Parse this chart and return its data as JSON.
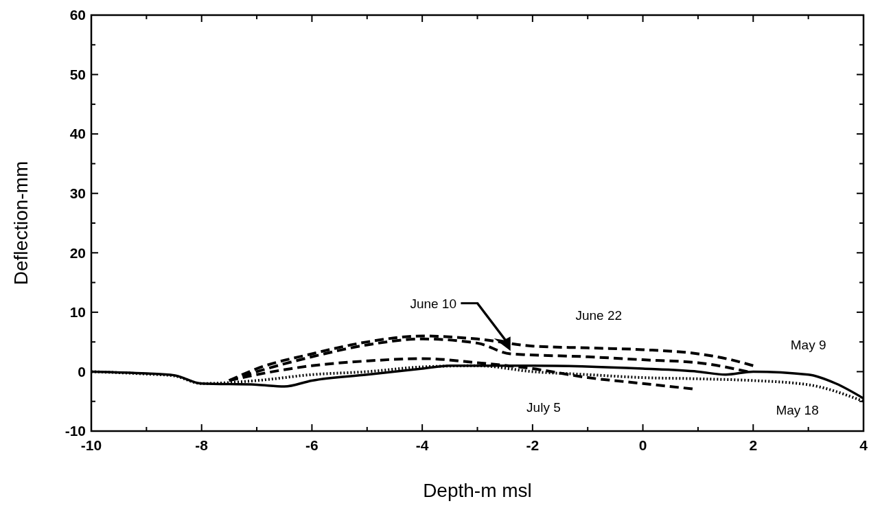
{
  "chart_data": {
    "type": "line",
    "xlabel": "Depth-m msl",
    "ylabel": "Deflection-mm",
    "xlim": [
      -10,
      4
    ],
    "ylim": [
      -10,
      60
    ],
    "xticks": [
      -10,
      {
        "value": -9,
        "label": null
      },
      -8,
      {
        "value": -7,
        "label": null
      },
      -6,
      {
        "value": -5,
        "label": null
      },
      -4,
      {
        "value": -3,
        "label": null
      },
      -2,
      {
        "value": -1,
        "label": null
      },
      0,
      {
        "value": 1,
        "label": null
      },
      2,
      {
        "value": 3,
        "label": null
      },
      4
    ],
    "yticks": [
      -10,
      {
        "value": -5,
        "label": null
      },
      0,
      {
        "value": 5,
        "label": null
      },
      10,
      {
        "value": 15,
        "label": null
      },
      20,
      {
        "value": 25,
        "label": null
      },
      30,
      {
        "value": 35,
        "label": null
      },
      40,
      {
        "value": 45,
        "label": null
      },
      50,
      {
        "value": 55,
        "label": null
      },
      60
    ],
    "grid": false,
    "legend": false,
    "marker": "none",
    "series": [
      {
        "name": "May 9",
        "color": "#000000",
        "line_style": "solid",
        "x": [
          -10,
          -9,
          -8.5,
          -8,
          -7,
          -6.5,
          -6,
          -5,
          -4,
          -3.5,
          -2,
          0,
          1,
          1.5,
          2,
          3,
          3.5,
          4
        ],
        "values": [
          0,
          -0.3,
          -0.6,
          -2,
          -2.2,
          -2.5,
          -1.5,
          -0.5,
          0.5,
          1,
          1,
          0.5,
          0,
          -0.5,
          0,
          -0.5,
          -2,
          -4.5
        ]
      },
      {
        "name": "May 18",
        "color": "#000000",
        "line_style": "dotted",
        "x": [
          -10,
          -9,
          -8.5,
          -8,
          -7,
          -6,
          -5,
          -4,
          -3,
          -2,
          -1,
          0,
          1,
          2,
          3,
          4
        ],
        "values": [
          0,
          -0.4,
          -0.7,
          -2,
          -1.5,
          -0.5,
          0,
          0.8,
          1,
          0,
          -0.5,
          -1,
          -1.2,
          -1.5,
          -2.2,
          -5
        ]
      },
      {
        "name": "June 10",
        "color": "#000000",
        "line_style": "dashed",
        "x": [
          -7.5,
          -7,
          -6,
          -5,
          -4,
          -3,
          -2.4,
          -1,
          0,
          1,
          1.9
        ],
        "values": [
          -1.5,
          0,
          2.5,
          4.5,
          5.5,
          4.8,
          3,
          2.5,
          2,
          1.5,
          0
        ]
      },
      {
        "name": "June 22",
        "color": "#000000",
        "line_style": "dashed",
        "x": [
          -7.5,
          -7,
          -6,
          -5,
          -4,
          -3,
          -2,
          -1,
          0,
          1,
          1.6,
          2
        ],
        "values": [
          -1.5,
          0.5,
          3,
          5,
          6,
          5.5,
          4.3,
          4,
          3.7,
          3,
          2,
          1
        ]
      },
      {
        "name": "July 5",
        "color": "#000000",
        "line_style": "dashed",
        "x": [
          -7.5,
          -7,
          -6,
          -5,
          -4,
          -3,
          -2,
          -1,
          0,
          0.9
        ],
        "values": [
          -1.5,
          -0.5,
          1,
          1.8,
          2.2,
          1.5,
          0.5,
          -1,
          -2,
          -2.9
        ]
      }
    ]
  }
}
